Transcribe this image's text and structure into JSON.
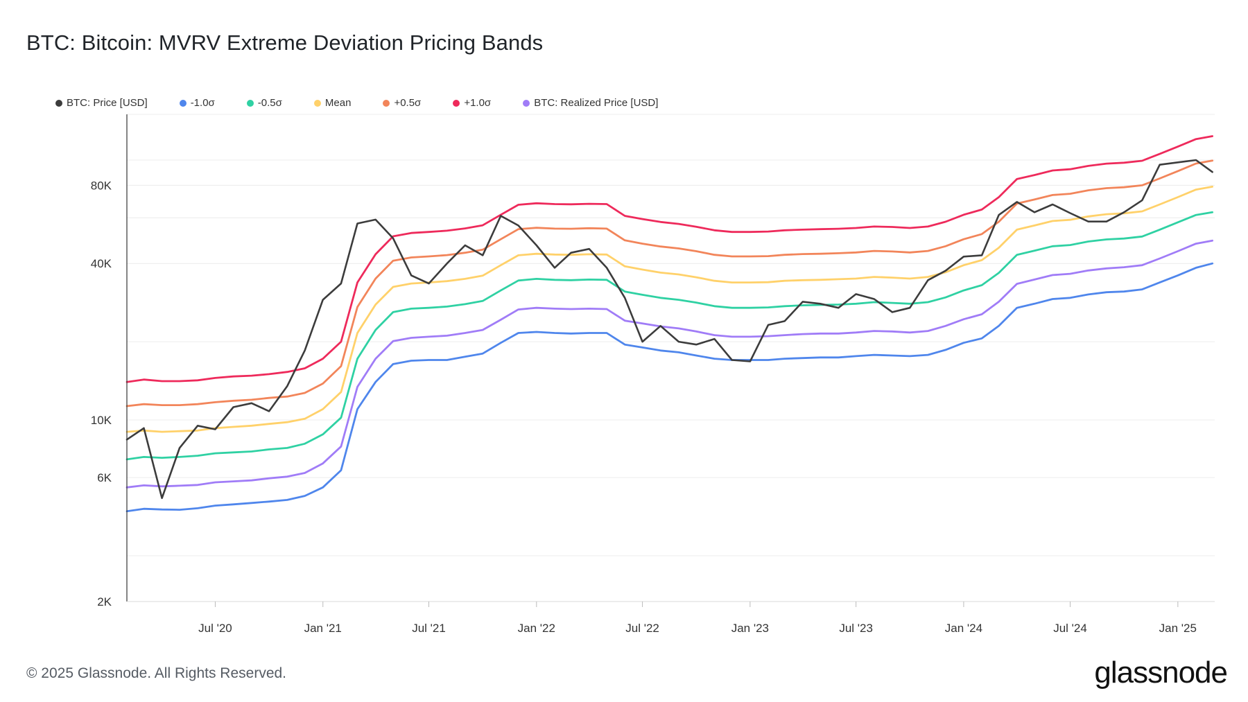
{
  "title": "BTC: Bitcoin: MVRV Extreme Deviation Pricing Bands",
  "footer": "© 2025 Glassnode. All Rights Reserved.",
  "brand": "glassnode",
  "legend": [
    {
      "label": "BTC: Price [USD]",
      "color": "#3c3c3c"
    },
    {
      "label": "-1.0σ",
      "color": "#4f86ec"
    },
    {
      "label": "-0.5σ",
      "color": "#2fd1a3"
    },
    {
      "label": "Mean",
      "color": "#ffd16a"
    },
    {
      "label": "+0.5σ",
      "color": "#f2855a"
    },
    {
      "label": "+1.0σ",
      "color": "#ee2a5b"
    },
    {
      "label": "BTC: Realized Price [USD]",
      "color": "#a07cf7"
    }
  ],
  "chart_data": {
    "type": "line",
    "scale": "log",
    "ylim": [
      2000,
      150000
    ],
    "y_ticks": [
      {
        "value": 2000,
        "label": "2K"
      },
      {
        "value": 6000,
        "label": "6K"
      },
      {
        "value": 10000,
        "label": "10K"
      },
      {
        "value": 40000,
        "label": "40K"
      },
      {
        "value": 80000,
        "label": "80K"
      }
    ],
    "x_range": [
      "2020-02-01",
      "2025-03-05"
    ],
    "x_ticks": [
      {
        "date": "2020-07-01",
        "label": "Jul '20"
      },
      {
        "date": "2021-01-01",
        "label": "Jan '21"
      },
      {
        "date": "2021-07-01",
        "label": "Jul '21"
      },
      {
        "date": "2022-01-01",
        "label": "Jan '22"
      },
      {
        "date": "2022-07-01",
        "label": "Jul '22"
      },
      {
        "date": "2023-01-01",
        "label": "Jan '23"
      },
      {
        "date": "2023-07-01",
        "label": "Jul '23"
      },
      {
        "date": "2024-01-01",
        "label": "Jan '24"
      },
      {
        "date": "2024-07-01",
        "label": "Jul '24"
      },
      {
        "date": "2025-01-01",
        "label": "Jan '25"
      }
    ],
    "grid": true,
    "legend_position": "top-left",
    "dates": [
      "2020-02-01",
      "2020-03-01",
      "2020-04-01",
      "2020-05-01",
      "2020-06-01",
      "2020-07-01",
      "2020-08-01",
      "2020-09-01",
      "2020-10-01",
      "2020-11-01",
      "2020-12-01",
      "2021-01-01",
      "2021-02-01",
      "2021-03-01",
      "2021-04-01",
      "2021-05-01",
      "2021-06-01",
      "2021-07-01",
      "2021-08-01",
      "2021-09-01",
      "2021-10-01",
      "2021-11-01",
      "2021-12-01",
      "2022-01-01",
      "2022-02-01",
      "2022-03-01",
      "2022-04-01",
      "2022-05-01",
      "2022-06-01",
      "2022-07-01",
      "2022-08-01",
      "2022-09-01",
      "2022-10-01",
      "2022-11-01",
      "2022-12-01",
      "2023-01-01",
      "2023-02-01",
      "2023-03-01",
      "2023-04-01",
      "2023-05-01",
      "2023-06-01",
      "2023-07-01",
      "2023-08-01",
      "2023-09-01",
      "2023-10-01",
      "2023-11-01",
      "2023-12-01",
      "2024-01-01",
      "2024-02-01",
      "2024-03-01",
      "2024-04-01",
      "2024-05-01",
      "2024-06-01",
      "2024-07-01",
      "2024-08-01",
      "2024-09-01",
      "2024-10-01",
      "2024-11-01",
      "2024-12-01",
      "2025-01-01",
      "2025-02-01",
      "2025-03-01"
    ],
    "series": [
      {
        "name": "BTC: Price [USD]",
        "color": "#3c3c3c",
        "values": [
          8400,
          9300,
          5000,
          7800,
          9500,
          9200,
          11200,
          11600,
          10800,
          13500,
          18500,
          29000,
          33500,
          57000,
          59000,
          50000,
          36000,
          33500,
          40000,
          47000,
          43000,
          61000,
          56000,
          47000,
          38500,
          44000,
          45500,
          38500,
          29500,
          20000,
          23000,
          20000,
          19500,
          20500,
          17000,
          16800,
          23200,
          24000,
          28500,
          28000,
          27000,
          30500,
          29200,
          26000,
          27000,
          34500,
          37500,
          42500,
          43000,
          61500,
          69000,
          63000,
          67500,
          62500,
          58000,
          58000,
          63000,
          70000,
          96000,
          98000,
          100000,
          90000
        ]
      },
      {
        "name": "-1.0σ",
        "color": "#4f86ec",
        "values": [
          4450,
          4550,
          4520,
          4510,
          4570,
          4680,
          4730,
          4790,
          4850,
          4920,
          5100,
          5500,
          6400,
          11000,
          14000,
          16400,
          16900,
          17000,
          17000,
          17500,
          18000,
          19800,
          21600,
          21800,
          21600,
          21500,
          21600,
          21600,
          19500,
          19000,
          18500,
          18200,
          17700,
          17200,
          17000,
          17000,
          17000,
          17200,
          17300,
          17400,
          17400,
          17600,
          17800,
          17700,
          17600,
          17800,
          18600,
          19800,
          20600,
          23000,
          27000,
          28000,
          29200,
          29500,
          30400,
          31000,
          31200,
          31800,
          33800,
          36000,
          38500,
          40000
        ]
      },
      {
        "name": "-0.5σ",
        "color": "#2fd1a3",
        "values": [
          7050,
          7200,
          7150,
          7200,
          7280,
          7440,
          7500,
          7560,
          7700,
          7800,
          8100,
          8800,
          10200,
          17200,
          22200,
          26000,
          26800,
          27000,
          27300,
          27900,
          28700,
          31500,
          34400,
          34900,
          34600,
          34500,
          34700,
          34600,
          31200,
          30300,
          29500,
          29000,
          28300,
          27400,
          27000,
          27000,
          27100,
          27400,
          27600,
          27700,
          27800,
          28000,
          28400,
          28200,
          28000,
          28400,
          29600,
          31500,
          33000,
          36800,
          43200,
          44800,
          46600,
          47100,
          48600,
          49500,
          49900,
          50800,
          54000,
          57600,
          61500,
          63000
        ]
      },
      {
        "name": "Mean",
        "color": "#ffd16a",
        "values": [
          9000,
          9100,
          9000,
          9050,
          9100,
          9300,
          9400,
          9500,
          9650,
          9800,
          10100,
          11000,
          12800,
          21600,
          27800,
          32500,
          33500,
          33800,
          34200,
          34900,
          35900,
          39400,
          43000,
          43600,
          43300,
          43200,
          43400,
          43300,
          39000,
          37900,
          36900,
          36300,
          35400,
          34300,
          33800,
          33800,
          33900,
          34300,
          34500,
          34600,
          34800,
          35000,
          35500,
          35300,
          35000,
          35500,
          37000,
          39400,
          41200,
          46000,
          54000,
          56000,
          58300,
          58900,
          60700,
          61900,
          62400,
          63500,
          67500,
          72000,
          77000,
          79000
        ]
      },
      {
        "name": "+0.5σ",
        "color": "#f2855a",
        "values": [
          11300,
          11500,
          11400,
          11400,
          11500,
          11700,
          11850,
          11950,
          12150,
          12300,
          12700,
          13800,
          16100,
          27200,
          35000,
          41000,
          42200,
          42600,
          43100,
          44000,
          45200,
          49600,
          54200,
          54900,
          54500,
          54400,
          54700,
          54500,
          49100,
          47700,
          46500,
          45700,
          44600,
          43200,
          42600,
          42600,
          42700,
          43200,
          43500,
          43600,
          43800,
          44100,
          44700,
          44500,
          44100,
          44700,
          46600,
          49600,
          51900,
          57900,
          68000,
          70500,
          73400,
          74200,
          76500,
          78000,
          78600,
          80000,
          85000,
          90700,
          97000,
          99500
        ]
      },
      {
        "name": "+1.0σ",
        "color": "#ee2a5b",
        "values": [
          14000,
          14300,
          14100,
          14100,
          14200,
          14500,
          14700,
          14800,
          15000,
          15300,
          15800,
          17200,
          20000,
          33800,
          43400,
          50900,
          52400,
          52900,
          53500,
          54600,
          56100,
          61600,
          67300,
          68200,
          67700,
          67600,
          67900,
          67700,
          61000,
          59300,
          57800,
          56800,
          55400,
          53700,
          52900,
          52900,
          53100,
          53700,
          54000,
          54200,
          54400,
          54800,
          55500,
          55300,
          54800,
          55500,
          57900,
          61600,
          64500,
          72000,
          84500,
          87600,
          91200,
          92200,
          95000,
          96900,
          97700,
          99400,
          105600,
          112700,
          120500,
          123600
        ]
      },
      {
        "name": "BTC: Realized Price [USD]",
        "color": "#a07cf7",
        "values": [
          5500,
          5600,
          5550,
          5580,
          5620,
          5750,
          5800,
          5850,
          5960,
          6050,
          6250,
          6800,
          7900,
          13400,
          17200,
          20100,
          20700,
          20900,
          21100,
          21600,
          22200,
          24300,
          26600,
          27000,
          26800,
          26700,
          26800,
          26700,
          24100,
          23500,
          22900,
          22500,
          21900,
          21200,
          20900,
          20900,
          21000,
          21200,
          21400,
          21500,
          21500,
          21700,
          22000,
          21900,
          21700,
          22000,
          23000,
          24400,
          25500,
          28500,
          33400,
          34700,
          36100,
          36500,
          37600,
          38300,
          38700,
          39400,
          41800,
          44600,
          47700,
          49000
        ]
      }
    ]
  }
}
